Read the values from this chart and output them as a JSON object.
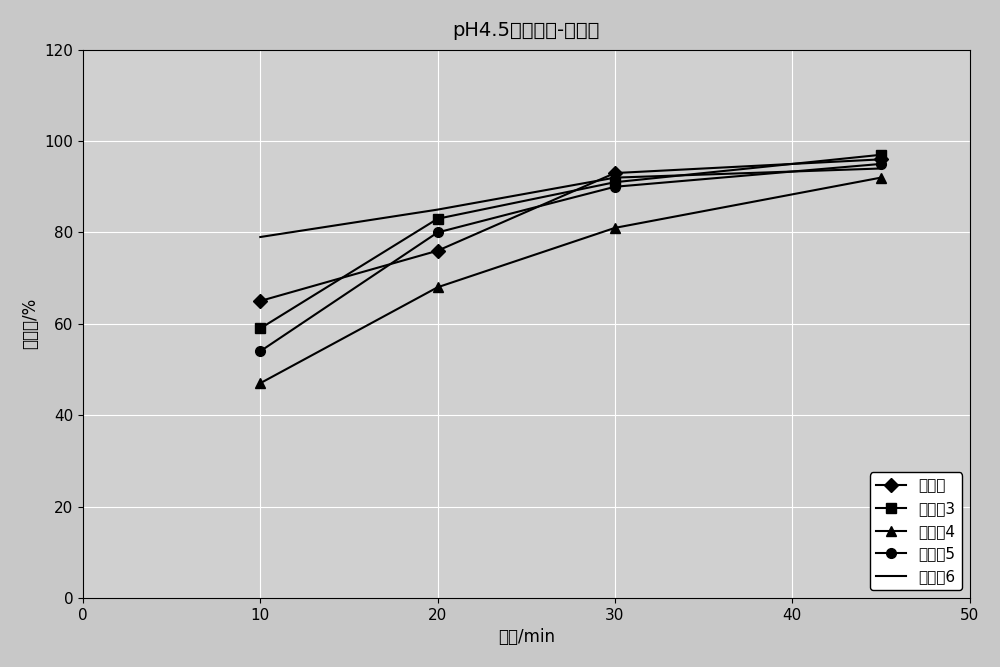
{
  "title": "pH4.5溶出曲线-缬沙坦",
  "xlabel": "时间/min",
  "ylabel": "溶出量/%",
  "xlim": [
    0,
    50
  ],
  "ylim": [
    0,
    120
  ],
  "xticks": [
    0,
    10,
    20,
    30,
    40,
    50
  ],
  "yticks": [
    0,
    20,
    40,
    60,
    80,
    100,
    120
  ],
  "x": [
    10,
    20,
    30,
    45
  ],
  "series": [
    {
      "label": "原研片",
      "values": [
        65,
        76,
        93,
        96
      ],
      "marker": "D",
      "color": "#000000",
      "linestyle": "-"
    },
    {
      "label": "实施例3",
      "values": [
        59,
        83,
        91,
        97
      ],
      "marker": "s",
      "color": "#000000",
      "linestyle": "-"
    },
    {
      "label": "实施例4",
      "values": [
        47,
        68,
        81,
        92
      ],
      "marker": "^",
      "color": "#000000",
      "linestyle": "-"
    },
    {
      "label": "实施例5",
      "values": [
        54,
        80,
        90,
        95
      ],
      "marker": "o",
      "color": "#000000",
      "linestyle": "-"
    },
    {
      "label": "实施例6",
      "values": [
        79,
        85,
        92,
        94
      ],
      "marker": null,
      "color": "#000000",
      "linestyle": "-"
    }
  ],
  "outer_bg_color": "#c8c8c8",
  "plot_bg_color": "#d0d0d0",
  "legend_bg_color": "#ffffff",
  "grid_color": "#ffffff",
  "title_fontsize": 14,
  "label_fontsize": 12,
  "tick_fontsize": 11,
  "legend_fontsize": 11
}
